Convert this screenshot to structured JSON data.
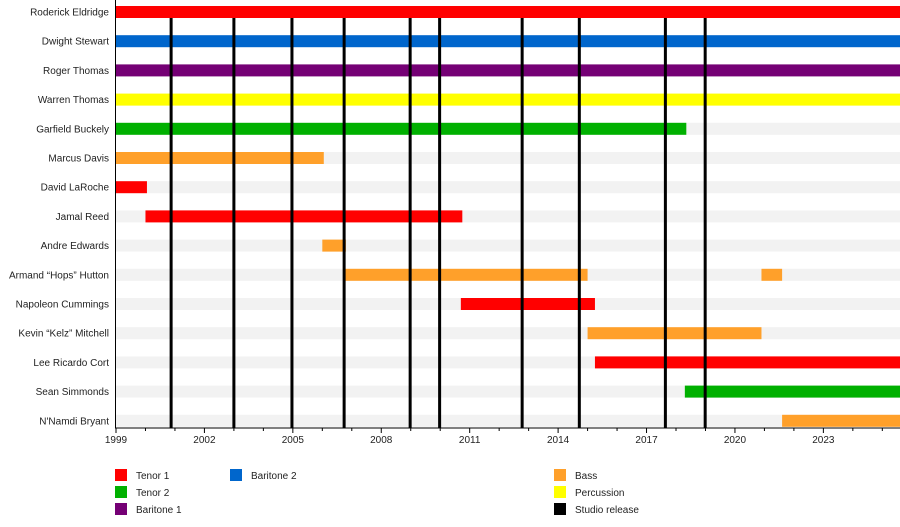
{
  "chart_data": {
    "type": "timeline",
    "xlim": [
      1999,
      2025.6
    ],
    "x_ticks": [
      "1999",
      "2002",
      "2005",
      "2008",
      "2011",
      "2014",
      "2017",
      "2020",
      "2023"
    ],
    "colors": {
      "Tenor 1": "#ff0000",
      "Tenor 2": "#00b000",
      "Baritone 1": "#750075",
      "Baritone 2": "#0066cc",
      "Bass": "#ffa02a",
      "Percussion": "#ffff00",
      "Studio release": "#000000"
    },
    "members": [
      {
        "name": "Roderick Eldridge",
        "periods": [
          {
            "role": "Tenor 1",
            "start": 1999,
            "end": 2025.6
          }
        ]
      },
      {
        "name": "Dwight Stewart",
        "periods": [
          {
            "role": "Baritone 2",
            "start": 1999,
            "end": 2025.6
          }
        ]
      },
      {
        "name": "Roger Thomas",
        "periods": [
          {
            "role": "Baritone 1",
            "start": 1999,
            "end": 2025.6
          }
        ]
      },
      {
        "name": "Warren Thomas",
        "periods": [
          {
            "role": "Percussion",
            "start": 1999,
            "end": 2025.6
          }
        ]
      },
      {
        "name": "Garfield Buckely",
        "periods": [
          {
            "role": "Tenor 2",
            "start": 1999,
            "end": 2018.35
          }
        ]
      },
      {
        "name": "Marcus Davis",
        "periods": [
          {
            "role": "Bass",
            "start": 1999,
            "end": 2006.05
          }
        ]
      },
      {
        "name": "David LaRoche",
        "periods": [
          {
            "role": "Tenor 1",
            "start": 1999,
            "end": 2000.05
          }
        ]
      },
      {
        "name": "Jamal Reed",
        "periods": [
          {
            "role": "Tenor 1",
            "start": 2000.0,
            "end": 2010.75
          }
        ]
      },
      {
        "name": "Andre Edwards",
        "periods": [
          {
            "role": "Bass",
            "start": 2006.0,
            "end": 2006.8
          }
        ]
      },
      {
        "name": "Armand “Hops” Hutton",
        "periods": [
          {
            "role": "Bass",
            "start": 2006.75,
            "end": 2015.0
          },
          {
            "role": "Bass",
            "start": 2020.9,
            "end": 2021.6
          }
        ]
      },
      {
        "name": "Napoleon Cummings",
        "periods": [
          {
            "role": "Tenor 1",
            "start": 2010.7,
            "end": 2015.25
          }
        ]
      },
      {
        "name": "Kevin “Kelz” Mitchell",
        "periods": [
          {
            "role": "Bass",
            "start": 2015.0,
            "end": 2020.9
          }
        ]
      },
      {
        "name": "Lee Ricardo Cort",
        "periods": [
          {
            "role": "Tenor 1",
            "start": 2015.25,
            "end": 2025.6
          }
        ]
      },
      {
        "name": "Sean Simmonds",
        "periods": [
          {
            "role": "Tenor 2",
            "start": 2018.3,
            "end": 2025.6
          }
        ]
      },
      {
        "name": "N'Namdi Bryant",
        "periods": [
          {
            "role": "Bass",
            "start": 2021.6,
            "end": 2025.6
          }
        ]
      }
    ],
    "studio_releases": [
      2000.87,
      2003.0,
      2004.97,
      2006.74,
      2008.98,
      2009.98,
      2012.78,
      2014.72,
      2017.64,
      2018.99
    ],
    "legend": [
      {
        "label": "Tenor 1",
        "color": "#ff0000"
      },
      {
        "label": "Tenor 2",
        "color": "#00b000"
      },
      {
        "label": "Baritone 1",
        "color": "#750075"
      },
      {
        "label": "Baritone 2",
        "color": "#0066cc"
      },
      {
        "label": "Bass",
        "color": "#ffa02a"
      },
      {
        "label": "Percussion",
        "color": "#ffff00"
      },
      {
        "label": "Studio release",
        "color": "#000000"
      }
    ],
    "grid": false,
    "legend_position": "bottom"
  }
}
